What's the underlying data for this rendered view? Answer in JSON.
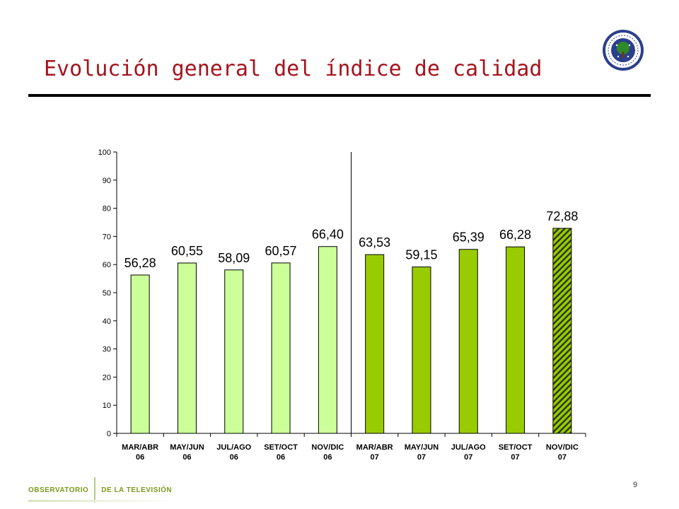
{
  "title": "Evolución general del índice de calidad",
  "page_number": "9",
  "footer": {
    "left_text": "OBSERVATORIO",
    "right_text": "DE LA TELEVISIÓN"
  },
  "seal": {
    "icon": "university-seal-icon"
  },
  "colors": {
    "title": "#a5141e",
    "bar_2006": "#ccff99",
    "bar_2007": "#99cc00",
    "bar_hatch_fg": "#99cc00",
    "bar_hatch_bg": "#2a3a00"
  },
  "chart_data": {
    "type": "bar",
    "categories": [
      [
        "MAR/ABR",
        "06"
      ],
      [
        "MAY/JUN",
        "06"
      ],
      [
        "JUL/AGO",
        "06"
      ],
      [
        "SET/OCT",
        "06"
      ],
      [
        "NOV/DIC",
        "06"
      ],
      [
        "MAR/ABR",
        "07"
      ],
      [
        "MAY/JUN",
        "07"
      ],
      [
        "JUL/AGO",
        "07"
      ],
      [
        "SET/OCT",
        "07"
      ],
      [
        "NOV/DIC",
        "07"
      ]
    ],
    "values": [
      56.28,
      60.55,
      58.09,
      60.57,
      66.4,
      63.53,
      59.15,
      65.39,
      66.28,
      72.88
    ],
    "value_labels": [
      "56,28",
      "60,55",
      "58,09",
      "60,57",
      "66,40",
      "63,53",
      "59,15",
      "65,39",
      "66,28",
      "72,88"
    ],
    "bar_styles": [
      "light",
      "light",
      "light",
      "light",
      "light",
      "dark",
      "dark",
      "dark",
      "dark",
      "hatched"
    ],
    "ylim": [
      0,
      100
    ],
    "yticks": [
      0,
      10,
      20,
      30,
      40,
      50,
      60,
      70,
      80,
      90,
      100
    ],
    "grid": false,
    "separator_after_index": 4
  }
}
